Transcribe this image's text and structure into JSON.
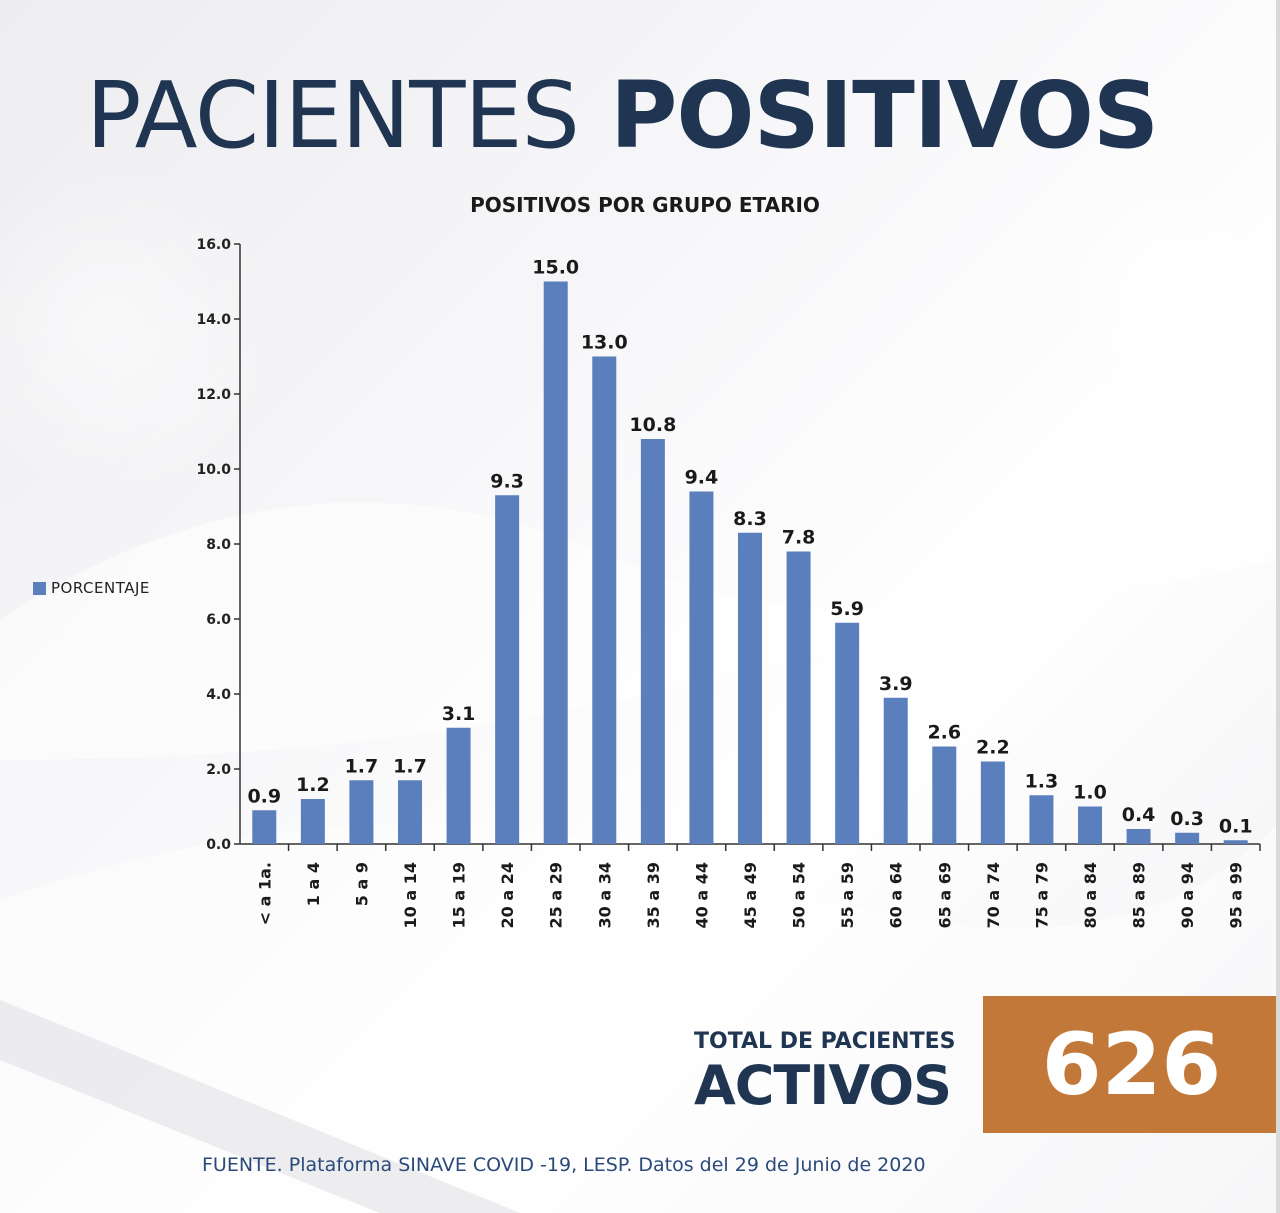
{
  "header": {
    "title_light": "PACIENTES",
    "title_bold": "POSITIVOS"
  },
  "chart_data": {
    "type": "bar",
    "title": "POSITIVOS POR GRUPO ETARIO",
    "xlabel": "",
    "ylabel": "",
    "ylim": [
      0,
      16
    ],
    "yticks": [
      "0.0",
      "2.0",
      "4.0",
      "6.0",
      "8.0",
      "10.0",
      "12.0",
      "14.0",
      "16.0"
    ],
    "categories": [
      "< a 1a.",
      "1 a 4",
      "5 a 9",
      "10 a 14",
      "15 a 19",
      "20 a 24",
      "25 a 29",
      "30 a 34",
      "35 a 39",
      "40 a 44",
      "45 a 49",
      "50 a 54",
      "55 a 59",
      "60 a 64",
      "65 a 69",
      "70 a 74",
      "75 a 79",
      "80 a 84",
      "85 a 89",
      "90 a 94",
      "95 a 99"
    ],
    "series": [
      {
        "name": "PORCENTAJE",
        "values": [
          0.9,
          1.2,
          1.7,
          1.7,
          3.1,
          9.3,
          15.0,
          13.0,
          10.8,
          9.4,
          8.3,
          7.8,
          5.9,
          3.9,
          2.6,
          2.2,
          1.3,
          1.0,
          0.4,
          0.3,
          0.1
        ],
        "labels": [
          "0.9",
          "1.2",
          "1.7",
          "1.7",
          "3.1",
          "9.3",
          "15.0",
          "13.0",
          "10.8",
          "9.4",
          "8.3",
          "7.8",
          "5.9",
          "3.9",
          "2.6",
          "2.2",
          "1.3",
          "1.0",
          "0.4",
          "0.3",
          "0.1"
        ]
      }
    ],
    "grid": false,
    "legend": "left"
  },
  "total": {
    "label_small": "TOTAL DE PACIENTES",
    "label_big": "ACTIVOS",
    "value": "626"
  },
  "footer": {
    "source": "FUENTE. Plataforma SINAVE COVID -19, LESP. Datos del 29 de Junio de 2020"
  },
  "colors": {
    "bar": "#5b7fbd",
    "title": "#1f3552",
    "total_box": "#c27839",
    "source_text": "#2b4a7a"
  }
}
